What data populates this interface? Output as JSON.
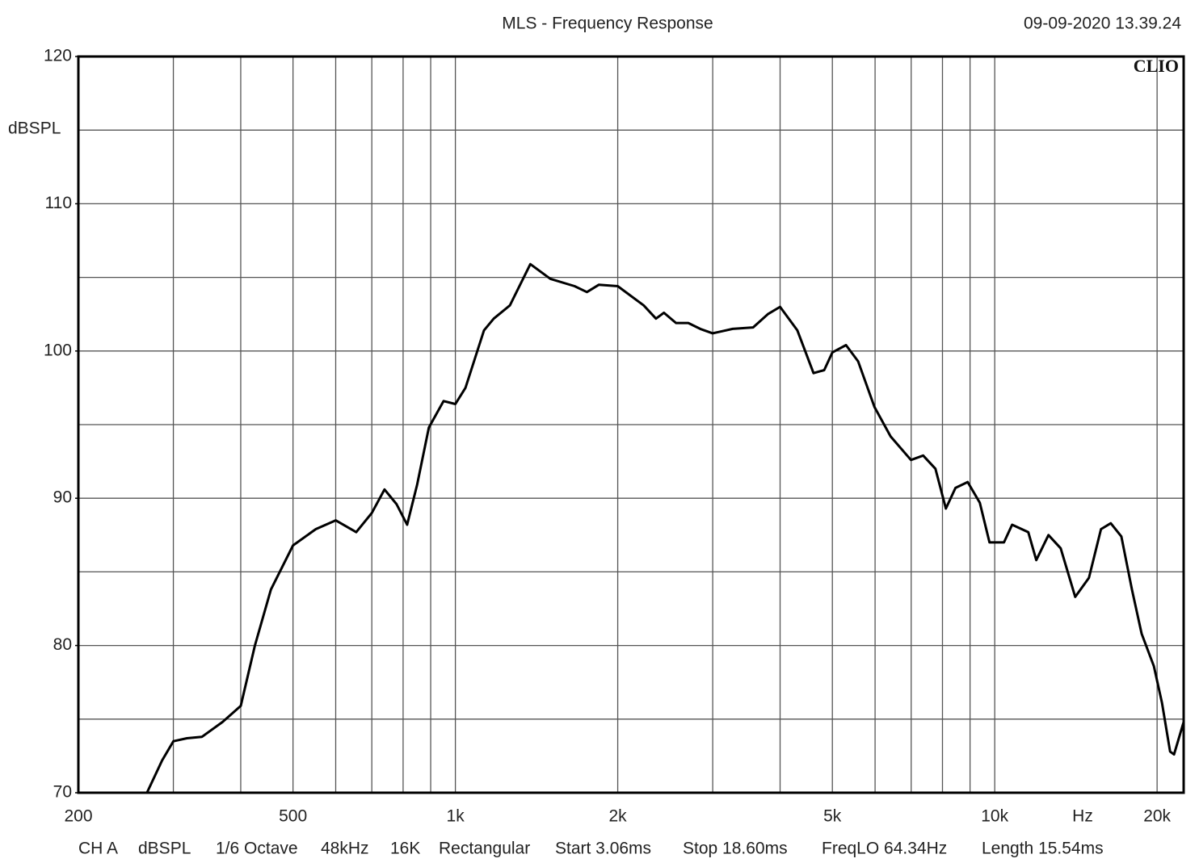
{
  "chart_data": {
    "type": "line",
    "title": "MLS - Frequency Response",
    "timestamp": "09-09-2020 13.39.24",
    "brand": "CLIO",
    "ylabel": "dBSPL",
    "xlabel": "Hz",
    "xscale": "log",
    "xlim": [
      200,
      22400
    ],
    "ylim": [
      70,
      120
    ],
    "yticks": [
      70,
      80,
      90,
      100,
      110,
      120
    ],
    "y_minor_grid": [
      75,
      85,
      95,
      105,
      115
    ],
    "xticks": [
      200,
      500,
      {
        "value": 1000,
        "label": "1k"
      },
      {
        "value": 2000,
        "label": "2k"
      },
      {
        "value": 5000,
        "label": "5k"
      },
      {
        "value": 10000,
        "label": "10k"
      },
      {
        "value": 20000,
        "label": "20k"
      }
    ],
    "x_minor_grid": [
      300,
      400,
      600,
      700,
      800,
      900,
      3000,
      4000,
      6000,
      7000,
      8000,
      9000
    ],
    "grid": true,
    "color": "#000000",
    "x": [
      268,
      286,
      300,
      318,
      339,
      370,
      400,
      425,
      455,
      500,
      551,
      600,
      655,
      700,
      739,
      778,
      814,
      849,
      893,
      951,
      1000,
      1044,
      1130,
      1178,
      1262,
      1377,
      1500,
      1664,
      1753,
      1846,
      2000,
      2234,
      2355,
      2436,
      2565,
      2703,
      2845,
      3000,
      3267,
      3564,
      3795,
      4000,
      4306,
      4613,
      4829,
      5000,
      5300,
      5582,
      5984,
      6411,
      6994,
      7368,
      7763,
      8118,
      8457,
      8909,
      9381,
      9780,
      10400,
      10770,
      11540,
      11940,
      12580,
      13250,
      14100,
      14950,
      15740,
      16410,
      17170,
      17960,
      18720,
      19720,
      20420,
      21140,
      21500,
      22400
    ],
    "values": [
      70.0,
      72.2,
      73.5,
      73.7,
      73.8,
      74.8,
      75.9,
      80.0,
      83.8,
      86.8,
      87.9,
      88.5,
      87.7,
      89.0,
      90.6,
      89.6,
      88.2,
      90.9,
      94.8,
      96.6,
      96.4,
      97.5,
      101.4,
      102.2,
      103.1,
      105.9,
      104.9,
      104.4,
      104.0,
      104.5,
      104.4,
      103.1,
      102.2,
      102.6,
      101.9,
      101.9,
      101.5,
      101.2,
      101.5,
      101.6,
      102.5,
      103.0,
      101.4,
      98.5,
      98.7,
      99.9,
      100.4,
      99.3,
      96.2,
      94.2,
      92.6,
      92.9,
      92.0,
      89.3,
      90.7,
      91.1,
      89.7,
      87.0,
      87.0,
      88.2,
      87.7,
      85.8,
      87.5,
      86.6,
      83.3,
      84.6,
      87.9,
      88.3,
      87.4,
      83.8,
      80.8,
      78.6,
      76.1,
      72.8,
      72.6,
      74.8
    ],
    "footer": [
      "CH A",
      "dBSPL",
      "1/6 Octave",
      "48kHz",
      "16K",
      "Rectangular",
      "Start 3.06ms",
      "Stop 18.60ms",
      "FreqLO 64.34Hz",
      "Length 15.54ms"
    ]
  }
}
